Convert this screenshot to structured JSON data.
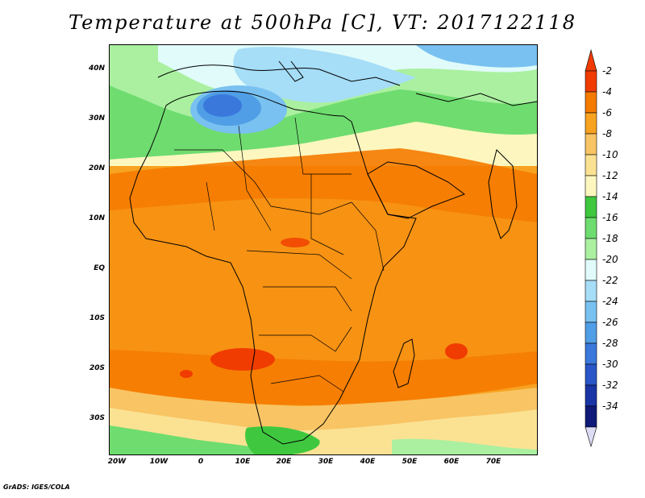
{
  "title": "Temperature at 500hPa [C], VT: 2017122118",
  "credit": "GrADS: IGES/COLA",
  "map": {
    "lon_ticks": [
      "20W",
      "10W",
      "0",
      "10E",
      "20E",
      "30E",
      "40E",
      "50E",
      "60E",
      "70E"
    ],
    "lat_ticks": [
      "40N",
      "30N",
      "20N",
      "10N",
      "EQ",
      "10S",
      "20S",
      "30S"
    ]
  },
  "colorbar": {
    "labels": [
      "-2",
      "-4",
      "-6",
      "-8",
      "-10",
      "-12",
      "-14",
      "-16",
      "-18",
      "-20",
      "-22",
      "-24",
      "-26",
      "-28",
      "-30",
      "-32",
      "-34"
    ],
    "colors": [
      "#f03c00",
      "#f57a00",
      "#f7a321",
      "#f8c464",
      "#fbe293",
      "#fdf7bf",
      "#3fc83f",
      "#6fdc6f",
      "#aaf0a0",
      "#e0fbfa",
      "#a6ddf7",
      "#79c1f0",
      "#509ee6",
      "#3a78dc",
      "#2a56c8",
      "#1a35a5",
      "#101a78"
    ]
  },
  "colors": {
    "background": "#ffffff",
    "coast": "#000000"
  }
}
